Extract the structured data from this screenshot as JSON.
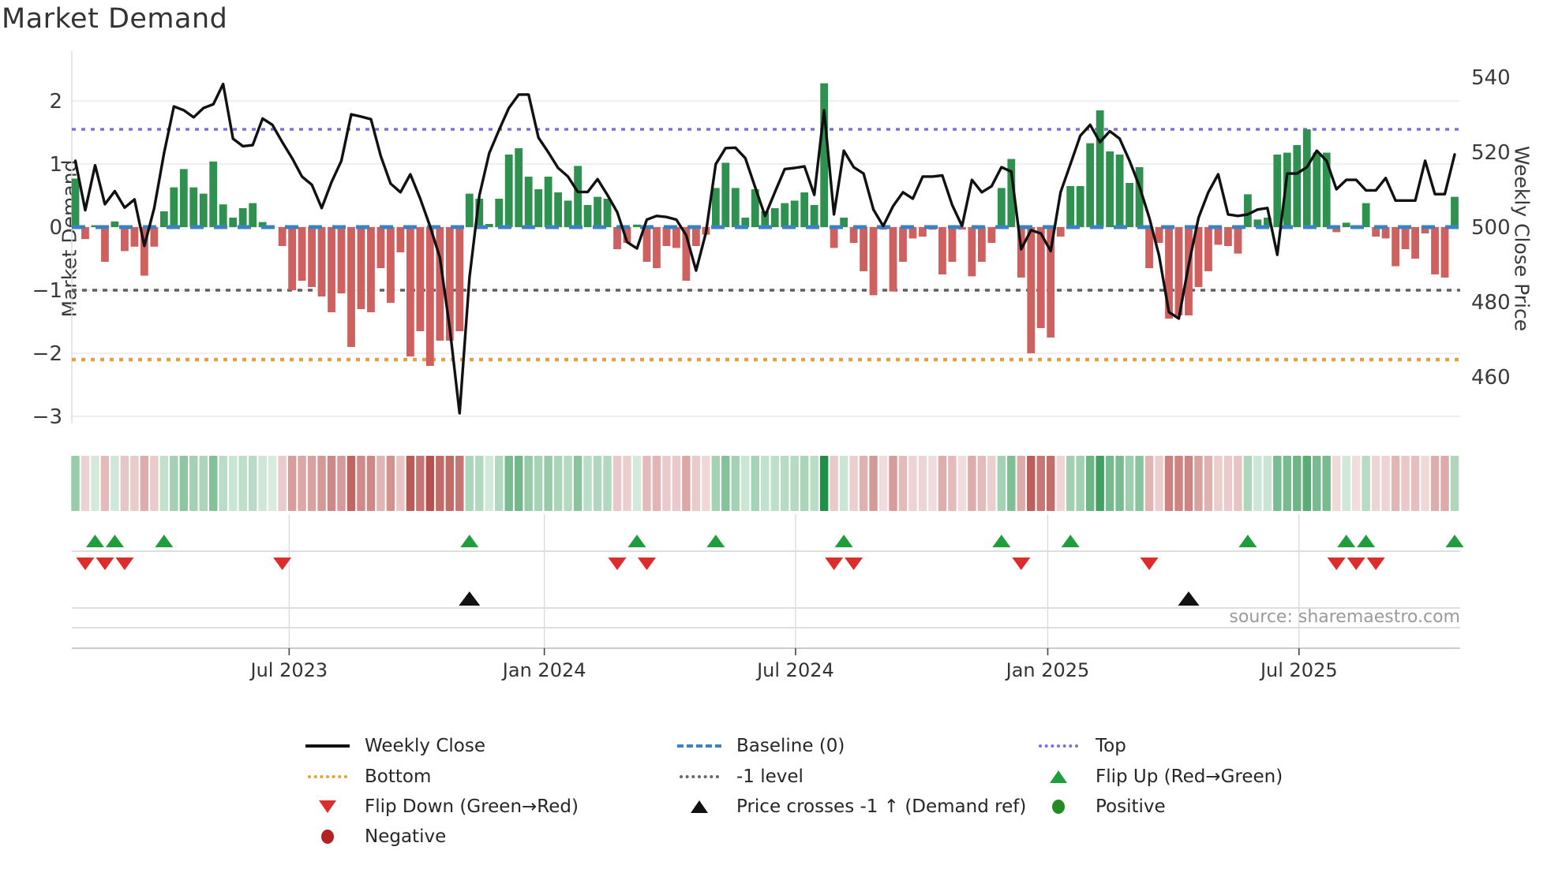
{
  "title": "Market Demand",
  "source_note": "source: sharemaestro.com",
  "axes": {
    "left_label": "Market Demand",
    "right_label": "Weekly Close Price",
    "left_tick_labels": [
      "2",
      "1",
      "0",
      "−1",
      "−2",
      "−3"
    ],
    "left_tick_values": [
      2,
      1,
      0,
      -1,
      -2,
      -3
    ],
    "right_tick_labels": [
      "540",
      "520",
      "500",
      "480",
      "460"
    ],
    "right_tick_values": [
      540,
      520,
      500,
      480,
      460
    ],
    "x_tick_labels": [
      "Jul 2023",
      "Jan 2024",
      "Jul 2024",
      "Jan 2025",
      "Jul 2025"
    ],
    "x_tick_weeks": [
      21.7,
      47.6,
      73.1,
      98.7,
      124.2
    ]
  },
  "ref_lines": {
    "baseline": {
      "label": "Baseline (0)",
      "value": 0,
      "color": "#3b82c4",
      "style": "dashed"
    },
    "top": {
      "label": "Top",
      "value": 1.55,
      "color": "#7b70e0",
      "style": "dotted"
    },
    "bottom": {
      "label": "Bottom",
      "value": -2.1,
      "color": "#ef9d2e",
      "style": "dotted"
    },
    "minus_one": {
      "label": "-1 level",
      "value": -1,
      "color": "#5f5f63",
      "style": "dotted"
    }
  },
  "legend": {
    "items": [
      {
        "label": "Weekly Close",
        "marker": "solid-line",
        "color": "#111111"
      },
      {
        "label": "Baseline (0)",
        "marker": "dashed-line",
        "color": "#3b82c4"
      },
      {
        "label": "Top",
        "marker": "dotted-line",
        "color": "#7b70e0"
      },
      {
        "label": "Bottom",
        "marker": "dotted-line",
        "color": "#ef9d2e"
      },
      {
        "label": "-1 level",
        "marker": "dotted-line",
        "color": "#666666"
      },
      {
        "label": "Flip Up (Red→Green)",
        "marker": "triangle-up",
        "color": "#1f9e3d"
      },
      {
        "label": "Flip Down (Green→Red)",
        "marker": "triangle-down",
        "color": "#dd2c2c"
      },
      {
        "label": "Price crosses -1 ↑ (Demand ref)",
        "marker": "triangle-up",
        "color": "#111111"
      },
      {
        "label": "Positive",
        "marker": "circle",
        "color": "#228b22"
      },
      {
        "label": "Negative",
        "marker": "circle",
        "color": "#b22222"
      }
    ]
  },
  "chart_data": {
    "type": "bar+line",
    "x_unit": "week",
    "n_weeks": 141,
    "ylim_left": [
      -3.1,
      2.8
    ],
    "ylim_right": [
      447.5,
      547.0
    ],
    "grid": true,
    "demand_series": {
      "name": "Market Demand",
      "type": "bar",
      "axis": "left",
      "positive_color": "#2f9150",
      "negative_color": "#cf6060",
      "values": [
        0.77,
        -0.19,
        0.03,
        -0.55,
        0.09,
        -0.38,
        -0.31,
        -0.77,
        -0.31,
        0.25,
        0.63,
        0.92,
        0.63,
        0.53,
        1.04,
        0.36,
        0.15,
        0.3,
        0.38,
        0.08,
        0.0,
        -0.3,
        -1.0,
        -0.85,
        -0.95,
        -1.1,
        -1.35,
        -1.05,
        -1.9,
        -1.3,
        -1.35,
        -0.65,
        -1.2,
        -0.4,
        -2.05,
        -1.65,
        -2.2,
        -1.8,
        -1.8,
        -1.65,
        0.53,
        0.45,
        0.05,
        0.45,
        1.15,
        1.25,
        0.8,
        0.6,
        0.8,
        0.55,
        0.42,
        0.97,
        0.35,
        0.48,
        0.45,
        -0.35,
        -0.25,
        0.04,
        -0.55,
        -0.65,
        -0.3,
        -0.33,
        -0.85,
        -0.3,
        -0.12,
        0.62,
        1.02,
        0.62,
        0.15,
        0.6,
        0.25,
        0.3,
        0.38,
        0.42,
        0.55,
        0.35,
        2.28,
        -0.33,
        0.15,
        -0.25,
        -0.7,
        -1.08,
        -0.04,
        -1.02,
        -0.55,
        -0.18,
        -0.15,
        -0.04,
        -0.75,
        -0.55,
        -0.04,
        -0.78,
        -0.55,
        -0.25,
        0.62,
        1.08,
        -0.8,
        -2.0,
        -1.6,
        -1.75,
        -0.15,
        0.65,
        0.65,
        1.33,
        1.85,
        1.2,
        1.15,
        0.7,
        0.95,
        -0.65,
        -0.25,
        -1.45,
        -1.4,
        -1.4,
        -0.95,
        -0.7,
        -0.28,
        -0.3,
        -0.42,
        0.52,
        0.12,
        0.15,
        1.15,
        1.18,
        1.3,
        1.55,
        1.18,
        1.18,
        -0.08,
        0.07,
        -0.03,
        0.38,
        -0.15,
        -0.18,
        -0.62,
        -0.35,
        -0.5,
        -0.1,
        -0.75,
        -0.8,
        0.48
      ]
    },
    "price_series": {
      "name": "Weekly Close",
      "type": "line",
      "axis": "right",
      "color": "#111111",
      "values": [
        517.7,
        504.5,
        516.5,
        506.1,
        509.6,
        505.2,
        507.4,
        495.0,
        505.1,
        519.7,
        532.2,
        531.2,
        529.3,
        531.8,
        532.8,
        538.2,
        523.6,
        521.6,
        521.9,
        529.0,
        527.3,
        522.7,
        518.4,
        513.5,
        511.3,
        505.1,
        512.0,
        517.7,
        530.1,
        529.5,
        528.8,
        519.0,
        511.6,
        509.3,
        514.1,
        507.6,
        500.2,
        491.9,
        473.1,
        450.3,
        486.5,
        508.4,
        519.7,
        525.9,
        531.8,
        535.4,
        535.4,
        523.9,
        520.0,
        515.8,
        513.5,
        509.4,
        509.4,
        512.8,
        508.6,
        504.0,
        496.0,
        494.3,
        502.0,
        503.0,
        502.7,
        502.0,
        497.8,
        488.4,
        498.5,
        516.8,
        521.1,
        521.2,
        518.4,
        510.6,
        503.0,
        509.3,
        515.5,
        515.8,
        516.2,
        508.6,
        531.2,
        503.4,
        520.4,
        516.0,
        514.3,
        504.7,
        500.3,
        505.6,
        509.3,
        507.6,
        513.5,
        513.5,
        513.8,
        505.9,
        500.3,
        512.6,
        509.3,
        510.9,
        516.0,
        514.8,
        494.1,
        499.2,
        498.3,
        493.6,
        509.3,
        516.8,
        524.4,
        527.3,
        522.7,
        525.6,
        523.6,
        517.7,
        510.9,
        502.5,
        492.4,
        477.3,
        475.6,
        489.9,
        502.5,
        509.3,
        514.1,
        503.4,
        503.0,
        503.4,
        504.7,
        505.1,
        492.6,
        514.3,
        514.3,
        516.0,
        520.4,
        517.7,
        510.1,
        512.6,
        512.6,
        509.8,
        509.8,
        513.1,
        507.1,
        507.1,
        507.1,
        517.7,
        508.8,
        508.8,
        519.4
      ]
    },
    "heatmap_strip": {
      "description": "weekly demand intensity strip, green positive / red negative",
      "derived_from": "demand_series",
      "positive_color": "#1e8e46",
      "negative_color": "#b44b49"
    },
    "markers": {
      "flip_up": {
        "label": "Flip Up (Red→Green)",
        "color": "#1f9e3d",
        "weeks": [
          2,
          4,
          9,
          40,
          57,
          65,
          78,
          94,
          101,
          119,
          129,
          131,
          140
        ]
      },
      "flip_down": {
        "label": "Flip Down (Green→Red)",
        "color": "#dd2c2c",
        "weeks": [
          1,
          3,
          5,
          21,
          55,
          58,
          77,
          79,
          96,
          109,
          128,
          130,
          132
        ]
      },
      "price_cross": {
        "label": "Price crosses -1 ↑ (Demand ref)",
        "color": "#111111",
        "weeks": [
          40,
          113
        ]
      }
    }
  },
  "colors": {
    "bar_positive": "#2f9150",
    "bar_negative": "#cf6060",
    "price_line": "#111111",
    "grid": "#e9e9ee",
    "axis_text": "#3a3a3a",
    "panel_lines": "#cccccc"
  }
}
